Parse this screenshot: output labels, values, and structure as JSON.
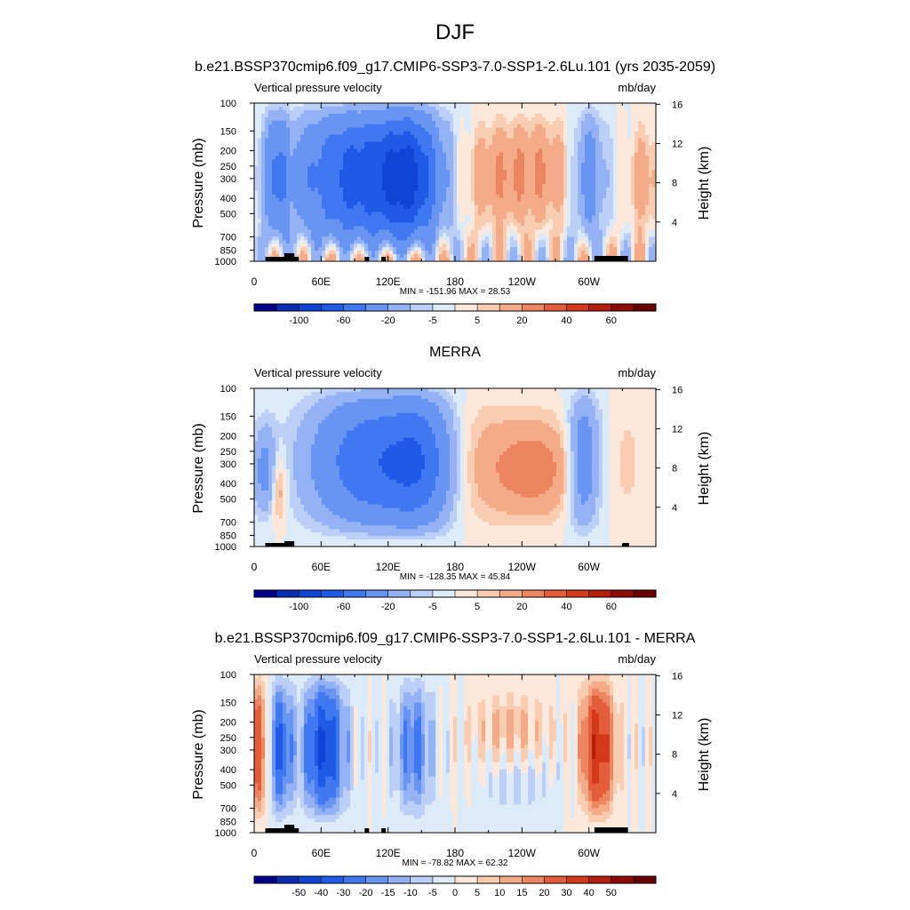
{
  "figure": {
    "title": "DJF"
  },
  "chart_data": [
    {
      "type": "heatmap",
      "title": "b.e21.BSSP370cmip6.f09_g17.CMIP6-SSP3-7.0-SSP1-2.6Lu.101 (yrs 2035-2059)",
      "left_label": "Vertical pressure velocity",
      "right_label": "mb/day",
      "ylabel": "Pressure (mb)",
      "y2label": "Height (km)",
      "x_ticks": [
        "0",
        "60E",
        "120E",
        "180",
        "120W",
        "60W"
      ],
      "y_ticks": [
        "100",
        "150",
        "200",
        "250",
        "300",
        "400",
        "500",
        "700",
        "850",
        "1000"
      ],
      "y2_ticks": [
        "16",
        "12",
        "8",
        "4"
      ],
      "stats": "MIN = -151.96  MAX =  28.53",
      "colorbar_labels": [
        "-100",
        "-60",
        "-20",
        "-5",
        "5",
        "20",
        "40",
        "60"
      ],
      "min": -151.96,
      "max": 28.53
    },
    {
      "type": "heatmap",
      "title": "MERRA",
      "left_label": "Vertical pressure velocity",
      "right_label": "mb/day",
      "ylabel": "Pressure (mb)",
      "y2label": "Height (km)",
      "x_ticks": [
        "0",
        "60E",
        "120E",
        "180",
        "120W",
        "60W"
      ],
      "y_ticks": [
        "100",
        "150",
        "200",
        "250",
        "300",
        "400",
        "500",
        "700",
        "850",
        "1000"
      ],
      "y2_ticks": [
        "16",
        "12",
        "8",
        "4"
      ],
      "stats": "MIN = -128.35  MAX =  45.84",
      "colorbar_labels": [
        "-100",
        "-60",
        "-20",
        "-5",
        "5",
        "20",
        "40",
        "60"
      ],
      "min": -128.35,
      "max": 45.84
    },
    {
      "type": "heatmap",
      "title": "b.e21.BSSP370cmip6.f09_g17.CMIP6-SSP3-7.0-SSP1-2.6Lu.101 - MERRA",
      "left_label": "Vertical pressure velocity",
      "right_label": "mb/day",
      "ylabel": "Pressure (mb)",
      "y2label": "Height (km)",
      "x_ticks": [
        "0",
        "60E",
        "120E",
        "180",
        "120W",
        "60W"
      ],
      "y_ticks": [
        "100",
        "150",
        "200",
        "250",
        "300",
        "400",
        "500",
        "700",
        "850",
        "1000"
      ],
      "y2_ticks": [
        "16",
        "12",
        "8",
        "4"
      ],
      "stats": "MIN = -78.82  MAX =  62.32",
      "colorbar_labels": [
        "-50",
        "-40",
        "-30",
        "-20",
        "-15",
        "-10",
        "-5",
        "0",
        "5",
        "10",
        "15",
        "20",
        "30",
        "40",
        "50"
      ],
      "min": -78.82,
      "max": 62.32
    }
  ],
  "palette": [
    "#00008b",
    "#0a2db4",
    "#0f45d6",
    "#1f5ae6",
    "#3f78f0",
    "#6894f2",
    "#94b2f4",
    "#bcd0f7",
    "#ddebf8",
    "#fde9dc",
    "#f9cdb2",
    "#f4ab88",
    "#ec8660",
    "#e35d3a",
    "#d4391c",
    "#b51d0c",
    "#8e0c05",
    "#6a0000"
  ]
}
